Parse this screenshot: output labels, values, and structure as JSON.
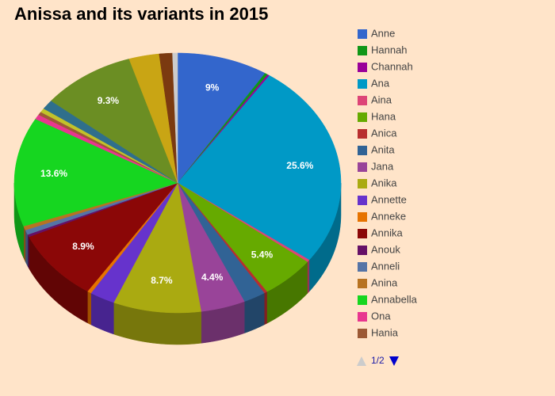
{
  "chart_data": {
    "type": "pie3d",
    "title": "Anissa and its variants in 2015",
    "categories": [
      "Anne",
      "Hannah",
      "Channah",
      "Ana",
      "Aina",
      "Hana",
      "Anica",
      "Anita",
      "Jana",
      "Anika",
      "Annette",
      "Anneke",
      "Annika",
      "Anouk",
      "Anneli",
      "Anina",
      "Annabella",
      "Ona",
      "Hania",
      null,
      null,
      null,
      null,
      null,
      null
    ],
    "values": [
      9,
      0.3,
      0.2,
      25.6,
      0.3,
      5.4,
      0.3,
      2.2,
      4.4,
      8.7,
      2.5,
      0.4,
      8.9,
      0.3,
      0.6,
      0.5,
      13.6,
      0.6,
      0.4,
      0.5,
      1.2,
      9.3,
      3,
      1.3,
      0.5
    ],
    "value_labels": [
      "9%",
      null,
      null,
      "25.6%",
      null,
      "5.4%",
      null,
      null,
      "4.4%",
      "8.7%",
      null,
      null,
      "8.9%",
      null,
      null,
      null,
      "13.6%",
      null,
      null,
      null,
      null,
      "9.3%",
      null,
      null,
      null
    ],
    "colors": [
      "#3366cc",
      "#109618",
      "#990099",
      "#0099c6",
      "#dd4477",
      "#66aa00",
      "#b82e2e",
      "#316395",
      "#994499",
      "#aaaa11",
      "#6633cc",
      "#e67300",
      "#8b0707",
      "#651067",
      "#5574a6",
      "#b77322",
      "#16d620",
      "#e8368f",
      "#9c5935",
      "#c2c22a",
      "#2f6f8c",
      "#6b8e23",
      "#c9a514",
      "#7b3a10",
      "#cccccc"
    ],
    "legend_page": "1/2"
  }
}
